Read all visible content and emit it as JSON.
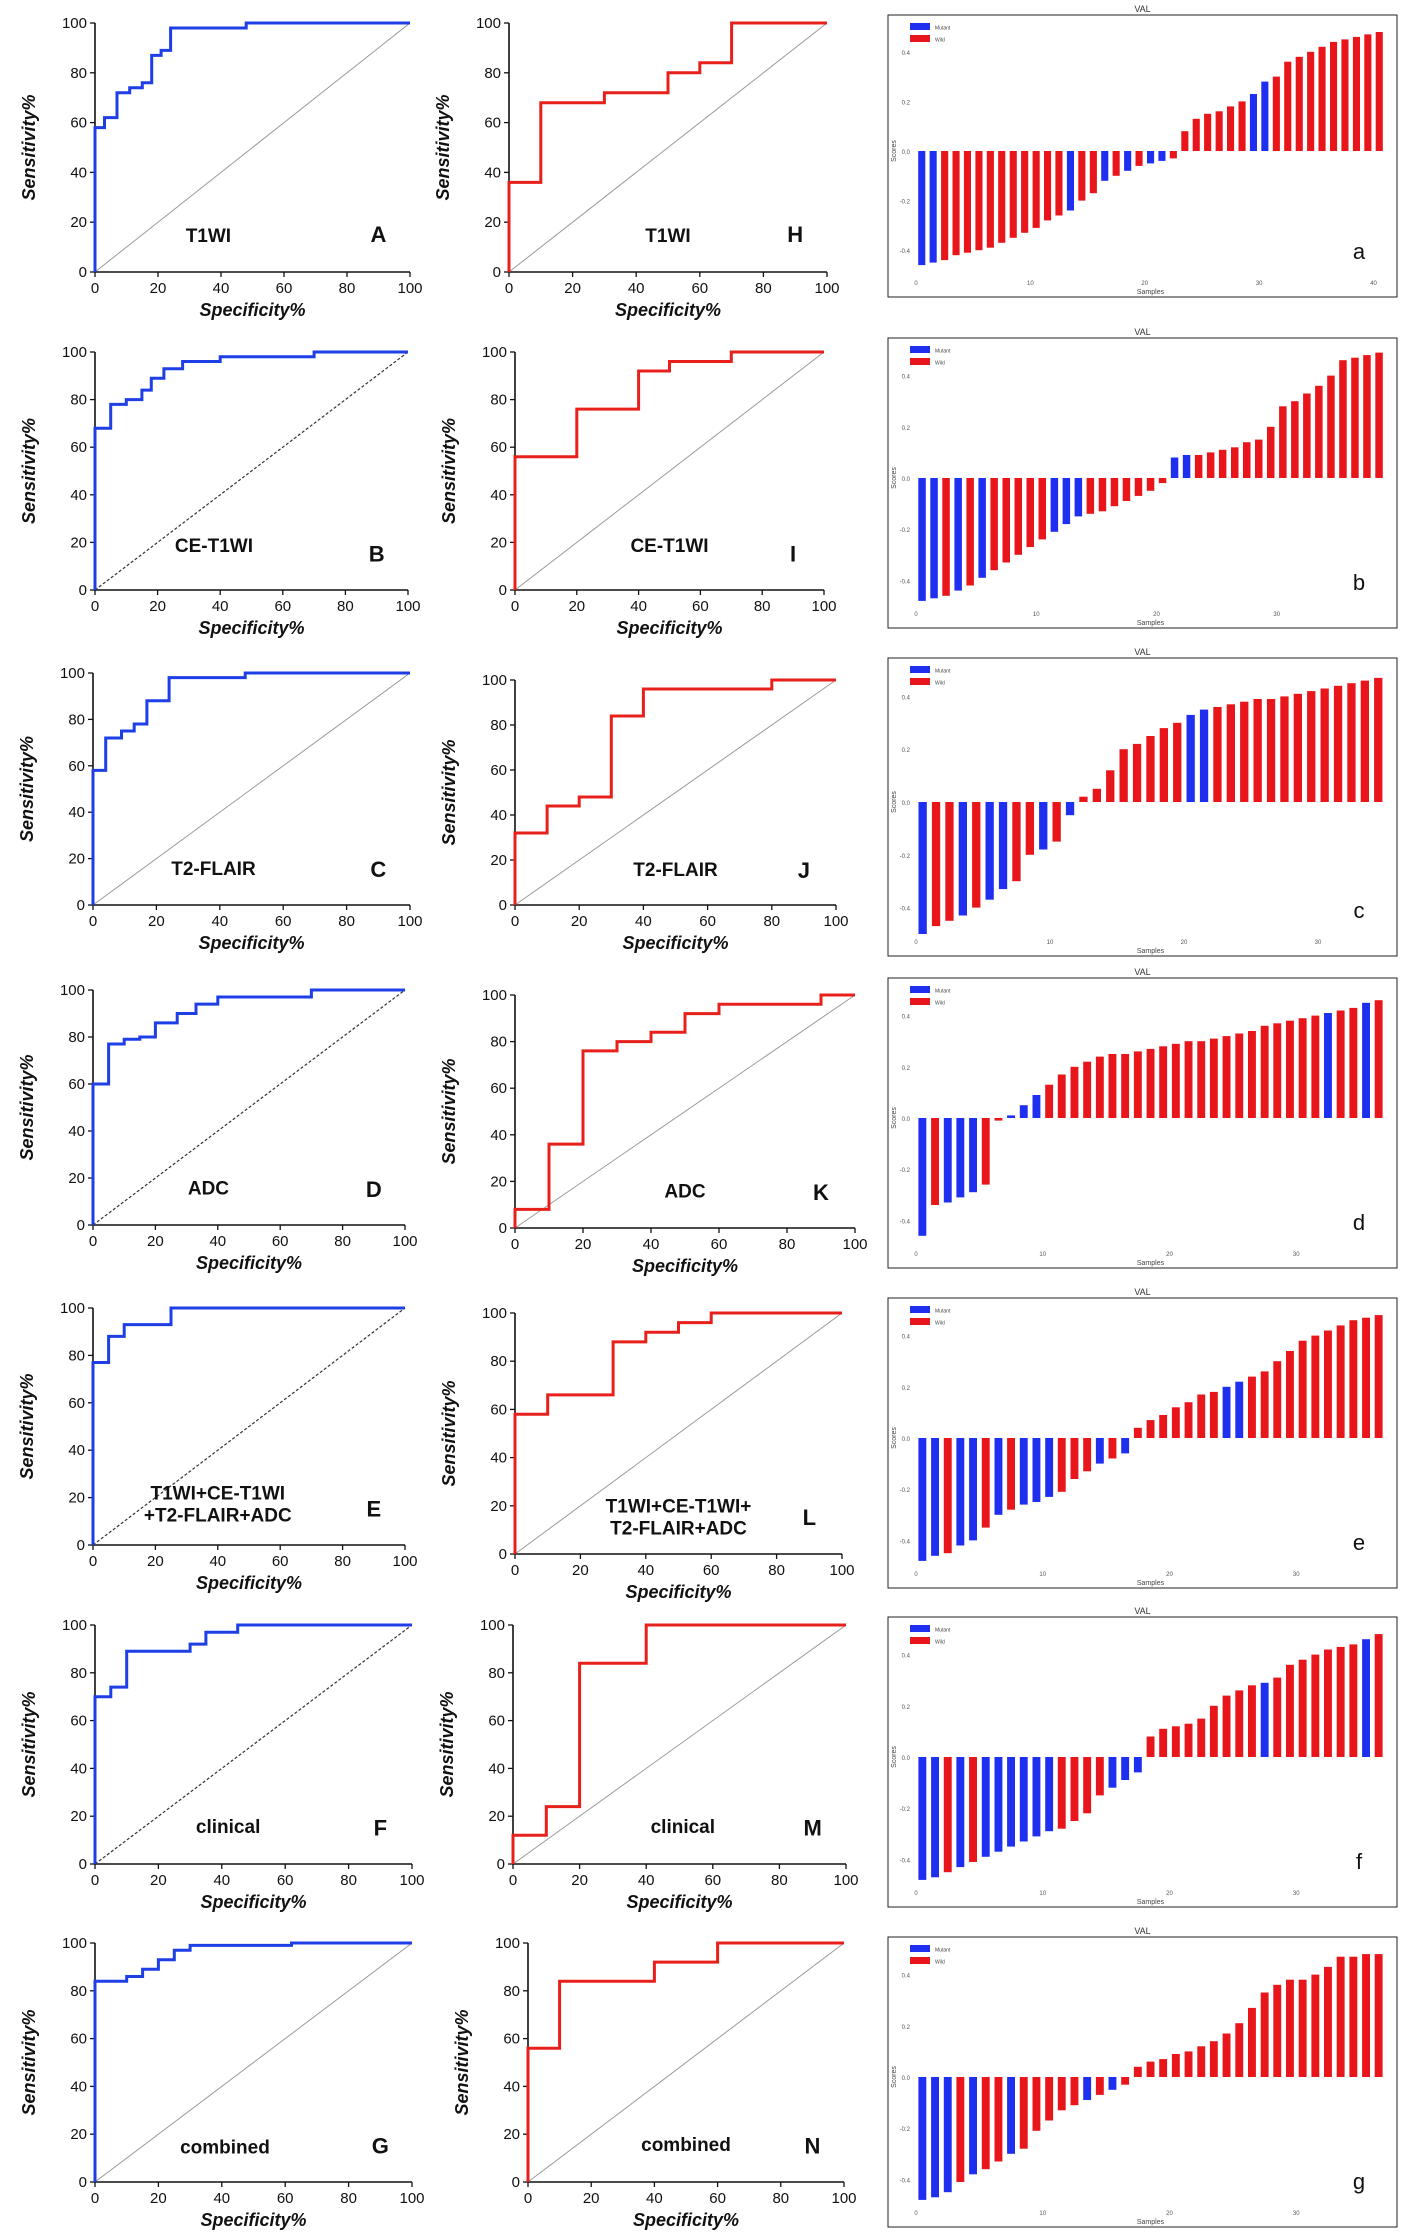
{
  "figure": {
    "roc_common": {
      "xlabel": "Specificity%",
      "ylabel": "Sensitivity%",
      "ticks": [
        0,
        20,
        40,
        60,
        80,
        100
      ],
      "xlim": [
        0,
        100
      ],
      "ylim": [
        0,
        100
      ]
    },
    "waterfall_common": {
      "title": "VAL",
      "xlabel": "Samples",
      "ylabel": "Scores",
      "legend": [
        "Mutant",
        "Wild"
      ],
      "xticks": [
        0,
        10,
        20,
        30,
        40
      ],
      "yticks": [
        "0.4",
        "0.2",
        "0.0",
        "-0.2",
        "-0.4"
      ]
    },
    "colors": {
      "train": "#1f3fe6",
      "val": "#e8201b",
      "mutant": "#1f2ff0",
      "wild": "#e8161b",
      "diag": "#9a9a9a"
    }
  },
  "chart_data": [
    {
      "type": "line",
      "panel": "A",
      "name": "T1WI",
      "label": "T1WI",
      "series_color": "train",
      "diag": "solid",
      "x": [
        0,
        0,
        3,
        3,
        7,
        7,
        11,
        11,
        15,
        15,
        18,
        18,
        21,
        21,
        24,
        24,
        48,
        48,
        100
      ],
      "y": [
        0,
        58,
        58,
        62,
        62,
        72,
        72,
        74,
        74,
        76,
        76,
        87,
        87,
        89,
        89,
        98,
        98,
        100,
        100
      ]
    },
    {
      "type": "line",
      "panel": "B",
      "name": "CE-T1WI",
      "label": "CE-T1WI",
      "series_color": "train",
      "diag": "dashed",
      "x": [
        0,
        0,
        5,
        5,
        10,
        10,
        15,
        15,
        18,
        18,
        22,
        22,
        28,
        28,
        40,
        40,
        70,
        70,
        100
      ],
      "y": [
        0,
        68,
        68,
        78,
        78,
        80,
        80,
        84,
        84,
        89,
        89,
        93,
        93,
        96,
        96,
        98,
        98,
        100,
        100
      ]
    },
    {
      "type": "line",
      "panel": "C",
      "name": "T2-FLAIR",
      "label": "T2-FLAIR",
      "series_color": "train",
      "diag": "solid",
      "x": [
        0,
        0,
        4,
        4,
        9,
        9,
        13,
        13,
        17,
        17,
        24,
        24,
        48,
        48,
        100
      ],
      "y": [
        0,
        58,
        58,
        72,
        72,
        75,
        75,
        78,
        78,
        88,
        88,
        98,
        98,
        100,
        100
      ]
    },
    {
      "type": "line",
      "panel": "D",
      "name": "ADC",
      "label": "ADC",
      "series_color": "train",
      "diag": "dashed",
      "x": [
        0,
        0,
        5,
        5,
        10,
        10,
        15,
        15,
        20,
        20,
        27,
        27,
        33,
        33,
        40,
        40,
        70,
        70,
        100
      ],
      "y": [
        0,
        60,
        60,
        77,
        77,
        79,
        79,
        80,
        80,
        86,
        86,
        90,
        90,
        94,
        94,
        97,
        97,
        100,
        100
      ]
    },
    {
      "type": "line",
      "panel": "E",
      "name": "T1WI+CE-T1WI+T2-FLAIR+ADC",
      "label": "T1WI+CE-T1WI +T2-FLAIR+ADC",
      "series_color": "train",
      "diag": "dashed",
      "x": [
        0,
        0,
        5,
        5,
        10,
        10,
        25,
        25,
        100
      ],
      "y": [
        0,
        77,
        77,
        88,
        88,
        93,
        93,
        100,
        100
      ]
    },
    {
      "type": "line",
      "panel": "F",
      "name": "clinical",
      "label": "clinical",
      "series_color": "train",
      "diag": "dashed",
      "x": [
        0,
        0,
        5,
        5,
        10,
        10,
        30,
        30,
        35,
        35,
        45,
        45,
        100
      ],
      "y": [
        0,
        70,
        70,
        74,
        74,
        89,
        89,
        92,
        92,
        97,
        97,
        100,
        100
      ]
    },
    {
      "type": "line",
      "panel": "G",
      "name": "combined",
      "label": "combined",
      "series_color": "train",
      "diag": "solid",
      "x": [
        0,
        0,
        10,
        10,
        15,
        15,
        20,
        20,
        25,
        25,
        30,
        30,
        62,
        62,
        100
      ],
      "y": [
        0,
        84,
        84,
        86,
        86,
        89,
        89,
        93,
        93,
        97,
        97,
        99,
        99,
        100,
        100
      ]
    },
    {
      "type": "line",
      "panel": "H",
      "name": "T1WI",
      "label": "T1WI",
      "series_color": "val",
      "diag": "solid",
      "x": [
        0,
        0,
        10,
        10,
        30,
        30,
        50,
        50,
        60,
        60,
        70,
        70,
        100
      ],
      "y": [
        0,
        36,
        36,
        68,
        68,
        72,
        72,
        80,
        80,
        84,
        84,
        100,
        100
      ]
    },
    {
      "type": "line",
      "panel": "I",
      "name": "CE-T1WI",
      "label": "CE-T1WI",
      "series_color": "val",
      "diag": "solid",
      "x": [
        0,
        0,
        20,
        20,
        40,
        40,
        50,
        50,
        70,
        70,
        100
      ],
      "y": [
        0,
        56,
        56,
        76,
        76,
        92,
        92,
        96,
        96,
        100,
        100
      ]
    },
    {
      "type": "line",
      "panel": "J",
      "name": "T2-FLAIR",
      "label": "T2-FLAIR",
      "series_color": "val",
      "diag": "solid",
      "x": [
        0,
        0,
        10,
        10,
        20,
        20,
        30,
        30,
        40,
        40,
        80,
        80,
        100
      ],
      "y": [
        0,
        32,
        32,
        44,
        44,
        48,
        48,
        84,
        84,
        96,
        96,
        100,
        100
      ]
    },
    {
      "type": "line",
      "panel": "K",
      "name": "ADC",
      "label": "ADC",
      "series_color": "val",
      "diag": "solid",
      "x": [
        0,
        0,
        10,
        10,
        20,
        20,
        30,
        30,
        40,
        40,
        50,
        50,
        60,
        60,
        90,
        90,
        100
      ],
      "y": [
        0,
        8,
        8,
        36,
        36,
        76,
        76,
        80,
        80,
        84,
        84,
        92,
        92,
        96,
        96,
        100,
        100
      ]
    },
    {
      "type": "line",
      "panel": "L",
      "name": "T1WI+CE-T1WI+T2-FLAIR+ADC",
      "label": "T1WI+CE-T1WI+ T2-FLAIR+ADC",
      "series_color": "val",
      "diag": "solid",
      "x": [
        0,
        0,
        10,
        10,
        30,
        30,
        40,
        40,
        50,
        50,
        60,
        60,
        100
      ],
      "y": [
        0,
        58,
        58,
        66,
        66,
        88,
        88,
        92,
        92,
        96,
        96,
        100,
        100
      ]
    },
    {
      "type": "line",
      "panel": "M",
      "name": "clinical",
      "label": "clinical",
      "series_color": "val",
      "diag": "solid",
      "x": [
        0,
        0,
        10,
        10,
        20,
        20,
        40,
        40,
        100
      ],
      "y": [
        0,
        12,
        12,
        24,
        24,
        84,
        84,
        100,
        100
      ]
    },
    {
      "type": "line",
      "panel": "N",
      "name": "combined",
      "label": "combined",
      "series_color": "val",
      "diag": "solid",
      "x": [
        0,
        0,
        10,
        10,
        40,
        40,
        60,
        60,
        100
      ],
      "y": [
        0,
        56,
        56,
        84,
        84,
        92,
        92,
        100,
        100
      ]
    },
    {
      "type": "bar",
      "panel": "a",
      "label": "a",
      "values": [
        -0.46,
        -0.45,
        -0.44,
        -0.42,
        -0.41,
        -0.4,
        -0.39,
        -0.37,
        -0.35,
        -0.33,
        -0.31,
        -0.28,
        -0.26,
        -0.24,
        -0.2,
        -0.17,
        -0.12,
        -0.1,
        -0.08,
        -0.06,
        -0.05,
        -0.04,
        -0.03,
        0.08,
        0.13,
        0.15,
        0.16,
        0.18,
        0.2,
        0.23,
        0.28,
        0.3,
        0.36,
        0.38,
        0.4,
        0.42,
        0.44,
        0.45,
        0.46,
        0.47,
        0.48
      ],
      "groups": [
        "M",
        "M",
        "W",
        "W",
        "W",
        "W",
        "W",
        "W",
        "W",
        "W",
        "W",
        "W",
        "W",
        "M",
        "W",
        "W",
        "M",
        "W",
        "M",
        "W",
        "M",
        "M",
        "W",
        "W",
        "W",
        "W",
        "W",
        "W",
        "W",
        "M",
        "M",
        "W",
        "W",
        "W",
        "W",
        "W",
        "W",
        "W",
        "W",
        "W",
        "W"
      ]
    },
    {
      "type": "bar",
      "panel": "b",
      "label": "b",
      "values": [
        -0.48,
        -0.47,
        -0.46,
        -0.44,
        -0.42,
        -0.39,
        -0.36,
        -0.33,
        -0.3,
        -0.27,
        -0.24,
        -0.21,
        -0.18,
        -0.15,
        -0.14,
        -0.13,
        -0.11,
        -0.09,
        -0.07,
        -0.05,
        -0.02,
        0.08,
        0.09,
        0.09,
        0.1,
        0.11,
        0.12,
        0.14,
        0.15,
        0.2,
        0.28,
        0.3,
        0.33,
        0.36,
        0.4,
        0.46,
        0.47,
        0.48,
        0.49
      ],
      "groups": [
        "M",
        "M",
        "W",
        "M",
        "W",
        "M",
        "W",
        "W",
        "W",
        "W",
        "W",
        "M",
        "M",
        "M",
        "W",
        "W",
        "W",
        "W",
        "W",
        "W",
        "W",
        "M",
        "M",
        "W",
        "W",
        "W",
        "W",
        "W",
        "W",
        "W",
        "W",
        "W",
        "W",
        "W",
        "W",
        "W",
        "W",
        "W",
        "W"
      ]
    },
    {
      "type": "bar",
      "panel": "c",
      "label": "c",
      "values": [
        -0.5,
        -0.47,
        -0.45,
        -0.43,
        -0.4,
        -0.37,
        -0.33,
        -0.3,
        -0.2,
        -0.18,
        -0.15,
        -0.05,
        0.02,
        0.05,
        0.12,
        0.2,
        0.22,
        0.25,
        0.28,
        0.3,
        0.33,
        0.35,
        0.36,
        0.37,
        0.38,
        0.39,
        0.39,
        0.4,
        0.41,
        0.42,
        0.43,
        0.44,
        0.45,
        0.46,
        0.47
      ],
      "groups": [
        "M",
        "W",
        "W",
        "M",
        "W",
        "M",
        "M",
        "W",
        "W",
        "M",
        "W",
        "M",
        "W",
        "W",
        "W",
        "W",
        "W",
        "W",
        "W",
        "W",
        "M",
        "M",
        "W",
        "W",
        "W",
        "W",
        "W",
        "W",
        "W",
        "W",
        "W",
        "W",
        "W",
        "W",
        "W"
      ]
    },
    {
      "type": "bar",
      "panel": "d",
      "label": "d",
      "values": [
        -0.46,
        -0.34,
        -0.33,
        -0.31,
        -0.29,
        -0.26,
        -0.01,
        0.01,
        0.05,
        0.09,
        0.13,
        0.17,
        0.2,
        0.22,
        0.24,
        0.25,
        0.25,
        0.26,
        0.27,
        0.28,
        0.29,
        0.3,
        0.3,
        0.31,
        0.32,
        0.33,
        0.34,
        0.36,
        0.37,
        0.38,
        0.39,
        0.4,
        0.41,
        0.42,
        0.43,
        0.45,
        0.46
      ],
      "groups": [
        "M",
        "W",
        "M",
        "M",
        "M",
        "W",
        "W",
        "M",
        "M",
        "M",
        "W",
        "W",
        "W",
        "W",
        "W",
        "W",
        "W",
        "W",
        "W",
        "W",
        "W",
        "W",
        "W",
        "W",
        "W",
        "W",
        "W",
        "W",
        "W",
        "W",
        "W",
        "W",
        "M",
        "W",
        "W",
        "M",
        "W"
      ]
    },
    {
      "type": "bar",
      "panel": "e",
      "label": "e",
      "values": [
        -0.48,
        -0.46,
        -0.45,
        -0.42,
        -0.4,
        -0.35,
        -0.3,
        -0.28,
        -0.26,
        -0.25,
        -0.23,
        -0.21,
        -0.16,
        -0.13,
        -0.1,
        -0.08,
        -0.06,
        0.04,
        0.07,
        0.09,
        0.12,
        0.14,
        0.17,
        0.18,
        0.2,
        0.22,
        0.24,
        0.26,
        0.3,
        0.34,
        0.38,
        0.4,
        0.42,
        0.44,
        0.46,
        0.47,
        0.48
      ],
      "groups": [
        "M",
        "M",
        "W",
        "M",
        "M",
        "W",
        "M",
        "W",
        "M",
        "M",
        "M",
        "W",
        "W",
        "W",
        "M",
        "W",
        "M",
        "W",
        "W",
        "W",
        "W",
        "W",
        "W",
        "W",
        "M",
        "M",
        "W",
        "W",
        "W",
        "W",
        "W",
        "W",
        "W",
        "W",
        "W",
        "W",
        "W"
      ]
    },
    {
      "type": "bar",
      "panel": "f",
      "label": "f",
      "values": [
        -0.48,
        -0.47,
        -0.45,
        -0.43,
        -0.41,
        -0.39,
        -0.37,
        -0.35,
        -0.33,
        -0.31,
        -0.29,
        -0.28,
        -0.25,
        -0.22,
        -0.15,
        -0.12,
        -0.09,
        -0.06,
        0.08,
        0.11,
        0.12,
        0.13,
        0.15,
        0.2,
        0.24,
        0.26,
        0.28,
        0.29,
        0.31,
        0.36,
        0.38,
        0.4,
        0.42,
        0.43,
        0.44,
        0.46,
        0.48
      ],
      "groups": [
        "M",
        "M",
        "W",
        "M",
        "W",
        "M",
        "M",
        "M",
        "M",
        "M",
        "M",
        "W",
        "W",
        "W",
        "W",
        "M",
        "M",
        "M",
        "W",
        "W",
        "W",
        "W",
        "W",
        "W",
        "W",
        "W",
        "W",
        "M",
        "W",
        "W",
        "W",
        "W",
        "W",
        "W",
        "W",
        "M",
        "W"
      ]
    },
    {
      "type": "bar",
      "panel": "g",
      "label": "g",
      "values": [
        -0.48,
        -0.47,
        -0.45,
        -0.41,
        -0.38,
        -0.36,
        -0.33,
        -0.3,
        -0.28,
        -0.21,
        -0.17,
        -0.13,
        -0.11,
        -0.09,
        -0.07,
        -0.05,
        -0.03,
        0.04,
        0.06,
        0.07,
        0.09,
        0.1,
        0.12,
        0.14,
        0.17,
        0.21,
        0.27,
        0.33,
        0.36,
        0.38,
        0.38,
        0.4,
        0.43,
        0.47,
        0.47,
        0.48,
        0.48
      ],
      "groups": [
        "M",
        "M",
        "M",
        "W",
        "M",
        "W",
        "W",
        "M",
        "W",
        "W",
        "W",
        "W",
        "W",
        "M",
        "W",
        "M",
        "W",
        "W",
        "W",
        "W",
        "W",
        "W",
        "W",
        "W",
        "W",
        "W",
        "W",
        "W",
        "W",
        "W",
        "W",
        "W",
        "W",
        "W",
        "W",
        "W",
        "W"
      ]
    }
  ]
}
